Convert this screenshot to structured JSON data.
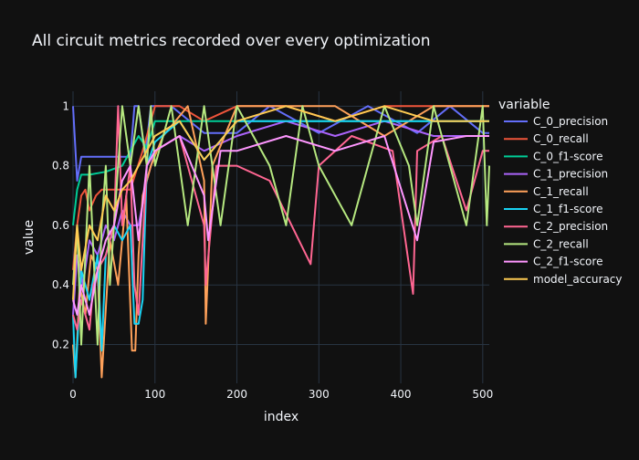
{
  "chart_data": {
    "type": "line",
    "title": "All circuit metrics recorded over every optimization",
    "xlabel": "index",
    "ylabel": "value",
    "xlim": [
      0,
      508
    ],
    "ylim": [
      0.07,
      1.05
    ],
    "x_ticks": [
      0,
      100,
      200,
      300,
      400,
      500
    ],
    "x_tick_labels": [
      "0",
      "100",
      "200",
      "300",
      "400",
      "500"
    ],
    "y_ticks": [
      0.2,
      0.4,
      0.6,
      0.8,
      1
    ],
    "y_tick_labels": [
      "0.2",
      "0.4",
      "0.6",
      "0.8",
      "1"
    ],
    "grid": true,
    "legend": {
      "title": "variable",
      "position": "right"
    },
    "series": [
      {
        "name": "C_0_precision",
        "color": "#636efa",
        "x": [
          0,
          5,
          10,
          40,
          70,
          75,
          80,
          88,
          95,
          120,
          160,
          200,
          240,
          300,
          360,
          420,
          460,
          500,
          508
        ],
        "y": [
          1,
          0.75,
          0.83,
          0.83,
          0.83,
          1,
          1,
          0.83,
          1,
          1,
          0.91,
          0.91,
          1,
          0.91,
          1,
          0.91,
          1,
          0.91,
          0.91
        ]
      },
      {
        "name": "C_0_recall",
        "color": "#ef553b",
        "x": [
          0,
          5,
          10,
          15,
          20,
          28,
          35,
          45,
          55,
          70,
          85,
          100,
          130,
          160,
          200,
          260,
          320,
          380,
          440,
          500,
          508
        ],
        "y": [
          0.45,
          0.6,
          0.7,
          0.72,
          0.65,
          0.7,
          0.72,
          0.72,
          0.72,
          0.72,
          0.85,
          1,
          1,
          0.95,
          1,
          1,
          0.95,
          1,
          1,
          1,
          1
        ]
      },
      {
        "name": "C_0_f1-score",
        "color": "#00cc96",
        "x": [
          0,
          5,
          10,
          20,
          40,
          60,
          80,
          90,
          100,
          130,
          160,
          200,
          260,
          320,
          380,
          440,
          500,
          508
        ],
        "y": [
          0.6,
          0.72,
          0.77,
          0.77,
          0.78,
          0.8,
          0.9,
          0.86,
          0.95,
          0.95,
          0.95,
          0.95,
          0.95,
          0.95,
          0.95,
          0.95,
          0.95,
          0.95
        ]
      },
      {
        "name": "C_1_precision",
        "color": "#ab63fa",
        "x": [
          0,
          5,
          12,
          20,
          30,
          40,
          50,
          60,
          70,
          80,
          90,
          100,
          130,
          160,
          200,
          260,
          320,
          380,
          440,
          500,
          508
        ],
        "y": [
          0.3,
          0.5,
          0.4,
          0.55,
          0.5,
          0.6,
          0.55,
          0.65,
          0.6,
          0.6,
          0.75,
          0.85,
          0.9,
          0.85,
          0.9,
          0.95,
          0.9,
          0.95,
          0.9,
          0.9,
          0.9
        ]
      },
      {
        "name": "C_1_recall",
        "color": "#ffa15a",
        "x": [
          0,
          3,
          8,
          15,
          22,
          30,
          35,
          45,
          55,
          65,
          72,
          76,
          80,
          85,
          95,
          110,
          140,
          160,
          162,
          170,
          200,
          260,
          320,
          380,
          440,
          500,
          508
        ],
        "y": [
          0.2,
          0.09,
          0.4,
          0.3,
          0.5,
          0.45,
          0.09,
          0.55,
          0.4,
          0.7,
          0.18,
          0.18,
          0.5,
          0.7,
          0.8,
          0.9,
          1,
          0.75,
          0.27,
          0.8,
          1,
          1,
          1,
          0.9,
          1,
          1,
          1
        ]
      },
      {
        "name": "C_1_f1-score",
        "color": "#19d3f3",
        "x": [
          0,
          3,
          10,
          20,
          30,
          35,
          40,
          50,
          60,
          70,
          75,
          80,
          85,
          90,
          100,
          130,
          160,
          200,
          260,
          320,
          380,
          440,
          500,
          508
        ],
        "y": [
          0.3,
          0.09,
          0.45,
          0.35,
          0.5,
          0.18,
          0.5,
          0.6,
          0.55,
          0.6,
          0.27,
          0.27,
          0.35,
          0.8,
          0.88,
          0.95,
          0.82,
          0.95,
          0.95,
          0.95,
          0.95,
          0.95,
          0.95,
          0.95
        ]
      },
      {
        "name": "C_2_precision",
        "color": "#ff6692",
        "x": [
          0,
          5,
          10,
          15,
          20,
          25,
          30,
          40,
          50,
          55,
          60,
          70,
          75,
          80,
          90,
          100,
          130,
          160,
          162,
          175,
          200,
          240,
          290,
          300,
          340,
          390,
          415,
          420,
          450,
          480,
          500,
          508
        ],
        "y": [
          0.3,
          0.25,
          0.35,
          0.3,
          0.25,
          0.4,
          0.45,
          0.5,
          0.6,
          1,
          0.6,
          0.8,
          0.4,
          0.3,
          0.8,
          0.85,
          0.9,
          0.6,
          0.4,
          0.8,
          0.8,
          0.75,
          0.47,
          0.8,
          0.9,
          0.85,
          0.37,
          0.85,
          0.9,
          0.65,
          0.85,
          0.85
        ]
      },
      {
        "name": "C_2_recall",
        "color": "#b6e880",
        "x": [
          0,
          5,
          10,
          20,
          30,
          35,
          40,
          45,
          50,
          55,
          60,
          70,
          80,
          90,
          95,
          100,
          120,
          140,
          160,
          180,
          200,
          240,
          260,
          280,
          300,
          340,
          380,
          410,
          420,
          440,
          460,
          480,
          500,
          505,
          508
        ],
        "y": [
          0.4,
          0.6,
          0.2,
          0.8,
          0.2,
          0.6,
          0.8,
          0.4,
          0.6,
          0.8,
          1,
          0.8,
          1,
          0.8,
          1,
          0.8,
          1,
          0.6,
          1,
          0.6,
          1,
          0.8,
          0.6,
          1,
          0.8,
          0.6,
          1,
          0.8,
          0.6,
          1,
          0.8,
          0.6,
          1,
          0.6,
          0.8
        ]
      },
      {
        "name": "C_2_f1-score",
        "color": "#ff97ff",
        "x": [
          0,
          5,
          10,
          15,
          20,
          30,
          40,
          50,
          60,
          70,
          80,
          90,
          100,
          130,
          160,
          165,
          180,
          200,
          260,
          320,
          380,
          420,
          440,
          480,
          500,
          508
        ],
        "y": [
          0.35,
          0.3,
          0.4,
          0.35,
          0.3,
          0.45,
          0.55,
          0.6,
          0.75,
          0.8,
          0.55,
          0.8,
          0.85,
          0.9,
          0.7,
          0.55,
          0.85,
          0.85,
          0.9,
          0.85,
          0.9,
          0.55,
          0.88,
          0.9,
          0.9,
          0.9
        ]
      },
      {
        "name": "model_accuracy",
        "color": "#fecb52",
        "x": [
          0,
          5,
          10,
          20,
          30,
          40,
          50,
          60,
          70,
          80,
          90,
          100,
          130,
          160,
          200,
          260,
          320,
          380,
          440,
          500,
          508
        ],
        "y": [
          0.35,
          0.6,
          0.45,
          0.6,
          0.55,
          0.7,
          0.65,
          0.72,
          0.75,
          0.8,
          0.85,
          0.9,
          0.95,
          0.82,
          0.95,
          1,
          0.95,
          1,
          0.95,
          0.95,
          0.95
        ]
      }
    ]
  }
}
